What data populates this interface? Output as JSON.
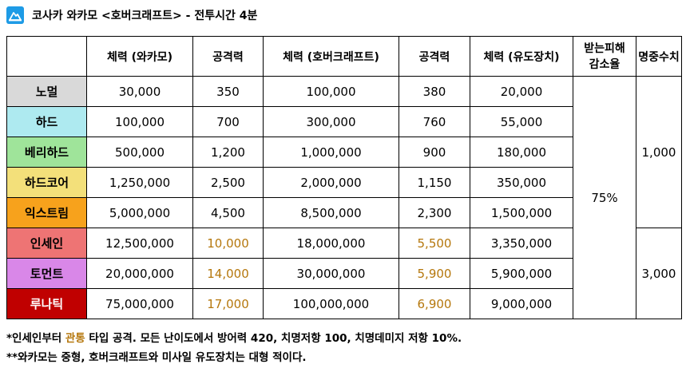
{
  "title": "코사카 와카모 <호버크래프트> - 전투시간 4분",
  "title_icon": "mountain-logo-icon",
  "headers": [
    "",
    "체력 (와카모)",
    "공격력",
    "체력 (호버크래프트)",
    "공격력",
    "체력 (유도장치)",
    "받는피해 감소율",
    "명중수치"
  ],
  "header_damage_line1": "받는피해",
  "header_damage_line2": "감소율",
  "rows": [
    {
      "difficulty": "노멀",
      "color": "#d9d9d9",
      "text_color": "#000000",
      "hp_wakamo": "30,000",
      "atk1": "350",
      "hp_hover": "100,000",
      "atk2": "380",
      "hp_device": "20,000"
    },
    {
      "difficulty": "하드",
      "color": "#aeeaf0",
      "text_color": "#000000",
      "hp_wakamo": "100,000",
      "atk1": "700",
      "hp_hover": "300,000",
      "atk2": "760",
      "hp_device": "55,000"
    },
    {
      "difficulty": "베리하드",
      "color": "#9fe49a",
      "text_color": "#000000",
      "hp_wakamo": "500,000",
      "atk1": "1,200",
      "hp_hover": "1,000,000",
      "atk2": "900",
      "hp_device": "180,000"
    },
    {
      "difficulty": "하드코어",
      "color": "#f3e07a",
      "text_color": "#000000",
      "hp_wakamo": "1,250,000",
      "atk1": "2,500",
      "hp_hover": "2,000,000",
      "atk2": "1,150",
      "hp_device": "350,000"
    },
    {
      "difficulty": "익스트림",
      "color": "#f7a21c",
      "text_color": "#000000",
      "hp_wakamo": "5,000,000",
      "atk1": "4,500",
      "hp_hover": "8,500,000",
      "atk2": "2,300",
      "hp_device": "1,500,000"
    },
    {
      "difficulty": "인세인",
      "color": "#ee7474",
      "text_color": "#000000",
      "hp_wakamo": "12,500,000",
      "atk1": "10,000",
      "hp_hover": "18,000,000",
      "atk2": "5,500",
      "hp_device": "3,350,000"
    },
    {
      "difficulty": "토먼트",
      "color": "#d987e8",
      "text_color": "#000000",
      "hp_wakamo": "20,000,000",
      "atk1": "14,000",
      "hp_hover": "30,000,000",
      "atk2": "5,900",
      "hp_device": "5,900,000"
    },
    {
      "difficulty": "루나틱",
      "color": "#c00000",
      "text_color": "#ffffff",
      "hp_wakamo": "75,000,000",
      "atk1": "17,000",
      "hp_hover": "100,000,000",
      "atk2": "6,900",
      "hp_device": "9,000,000"
    }
  ],
  "damage_reduction": "75%",
  "accuracy_group1": "1,000",
  "accuracy_group2": "3,000",
  "highlight_color": "#b5770c",
  "footnote1_prefix": "*인세인부터 ",
  "footnote1_highlight": "관통",
  "footnote1_suffix": " 타입 공격. 모든 난이도에서 방어력 420, 치명저항 100, 치명데미지 저항 10%.",
  "footnote2": "**와카모는 중형, 호버크래프트와 미사일 유도장치는 대형 적이다."
}
